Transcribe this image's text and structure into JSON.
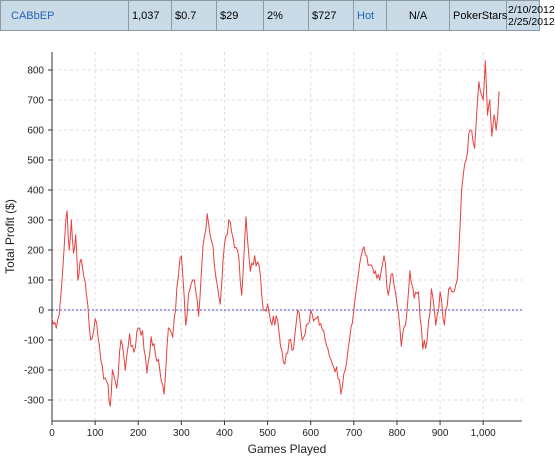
{
  "stats_row": {
    "player": "CABbEP",
    "games": "1,037",
    "stake": "$0.7",
    "avg": "$29",
    "roi": "2%",
    "profit": "$727",
    "status": "Hot",
    "na": "N/A",
    "site": "PokerStars",
    "date_from": "2/10/2012",
    "date_to": "2/25/2012"
  },
  "colors": {
    "header_bg": "#c9dbe6",
    "link": "#2a63b8",
    "series": "#e84040",
    "zero_line": "#4a4ad6",
    "grid": "#dddddd"
  },
  "chart_data": {
    "type": "line",
    "xlabel": "Games Played",
    "ylabel": "Total Profit ($)",
    "xlim": [
      0,
      1090
    ],
    "ylim": [
      -370,
      860
    ],
    "x_ticks": [
      0,
      100,
      200,
      300,
      400,
      500,
      600,
      700,
      800,
      900,
      1000
    ],
    "x_tick_labels": [
      "0",
      "100",
      "200",
      "300",
      "400",
      "500",
      "600",
      "700",
      "800",
      "900",
      "1,000"
    ],
    "y_ticks": [
      -300,
      -200,
      -100,
      0,
      100,
      200,
      300,
      400,
      500,
      600,
      700,
      800
    ],
    "y_tick_labels": [
      "-300",
      "-200",
      "-100",
      "0",
      "100",
      "200",
      "300",
      "400",
      "500",
      "600",
      "700",
      "800"
    ],
    "grid": true,
    "zero_line": true,
    "series": [
      {
        "x": [
          0,
          10,
          20,
          30,
          35,
          40,
          45,
          50,
          55,
          60,
          65,
          70,
          80,
          90,
          100,
          110,
          120,
          130,
          135,
          140,
          150,
          160,
          170,
          180,
          190,
          200,
          210,
          220,
          230,
          240,
          250,
          260,
          270,
          280,
          290,
          300,
          310,
          320,
          330,
          340,
          350,
          360,
          370,
          380,
          390,
          400,
          410,
          420,
          430,
          440,
          450,
          460,
          470,
          480,
          490,
          500,
          510,
          520,
          530,
          540,
          550,
          560,
          570,
          580,
          590,
          600,
          610,
          620,
          630,
          640,
          650,
          660,
          670,
          680,
          690,
          700,
          710,
          720,
          730,
          740,
          750,
          760,
          770,
          780,
          790,
          800,
          810,
          820,
          830,
          840,
          850,
          860,
          870,
          880,
          890,
          900,
          910,
          920,
          930,
          940,
          950,
          960,
          970,
          980,
          990,
          1000,
          1005,
          1010,
          1015,
          1020,
          1025,
          1030,
          1037
        ],
        "y": [
          -30,
          -60,
          40,
          250,
          330,
          200,
          300,
          190,
          250,
          100,
          160,
          150,
          50,
          -100,
          -30,
          -120,
          -230,
          -250,
          -320,
          -200,
          -260,
          -100,
          -200,
          -80,
          -140,
          -60,
          -70,
          -210,
          -90,
          -150,
          -200,
          -280,
          -60,
          -90,
          80,
          180,
          -50,
          70,
          100,
          -20,
          210,
          320,
          230,
          110,
          20,
          220,
          300,
          240,
          200,
          50,
          310,
          130,
          180,
          150,
          0,
          20,
          -50,
          -20,
          -120,
          -180,
          -100,
          -130,
          0,
          -100,
          -50,
          0,
          -30,
          -50,
          -70,
          -130,
          -180,
          -190,
          -280,
          -200,
          -100,
          0,
          110,
          200,
          180,
          150,
          130,
          100,
          180,
          50,
          120,
          20,
          -120,
          -50,
          130,
          40,
          60,
          -130,
          -100,
          70,
          -50,
          60,
          -50,
          70,
          60,
          100,
          400,
          500,
          600,
          540,
          760,
          700,
          830,
          650,
          700,
          580,
          650,
          600,
          727
        ]
      }
    ]
  }
}
